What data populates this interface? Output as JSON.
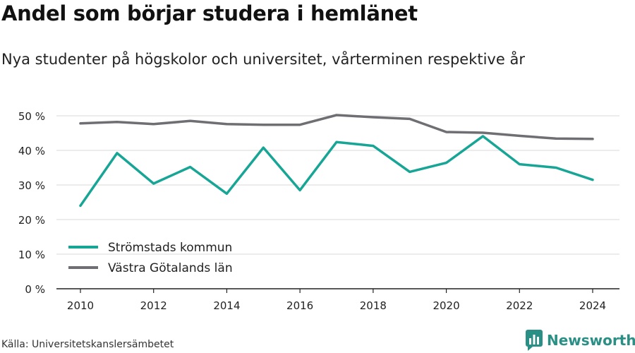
{
  "chart_data": {
    "type": "line",
    "title": "Andel som börjar studera i hemlänet",
    "subtitle": "Nya studenter på högskolor och universitet, vårterminen respektive år",
    "x": [
      2010,
      2011,
      2012,
      2013,
      2014,
      2015,
      2016,
      2017,
      2018,
      2019,
      2020,
      2021,
      2022,
      2023,
      2024
    ],
    "x_ticks": [
      "2010",
      "2012",
      "2014",
      "2016",
      "2018",
      "2020",
      "2022",
      "2024"
    ],
    "y_ticks": [
      "0 %",
      "10 %",
      "20 %",
      "30 %",
      "40 %",
      "50 %"
    ],
    "ylim": [
      0,
      52
    ],
    "grid": true,
    "legend_position": "bottom-left",
    "series": [
      {
        "name": "Strömstads kommun",
        "color": "#17a596",
        "values": [
          24.0,
          39.2,
          30.4,
          35.2,
          27.5,
          40.8,
          28.5,
          42.4,
          41.3,
          33.8,
          36.4,
          44.1,
          36.0,
          35.0,
          31.5
        ]
      },
      {
        "name": "Västra Götalands län",
        "color": "#6f6e73",
        "values": [
          47.8,
          48.2,
          47.6,
          48.5,
          47.6,
          47.4,
          47.4,
          50.2,
          49.6,
          49.1,
          45.3,
          45.1,
          44.2,
          43.4,
          43.3
        ]
      }
    ]
  },
  "footer": {
    "source": "Källa: Universitetskanslersämbetet",
    "brand": "Newsworthy",
    "brand_color": "#2a8f84",
    "brand_icon": "bar-chart-logo-icon"
  }
}
